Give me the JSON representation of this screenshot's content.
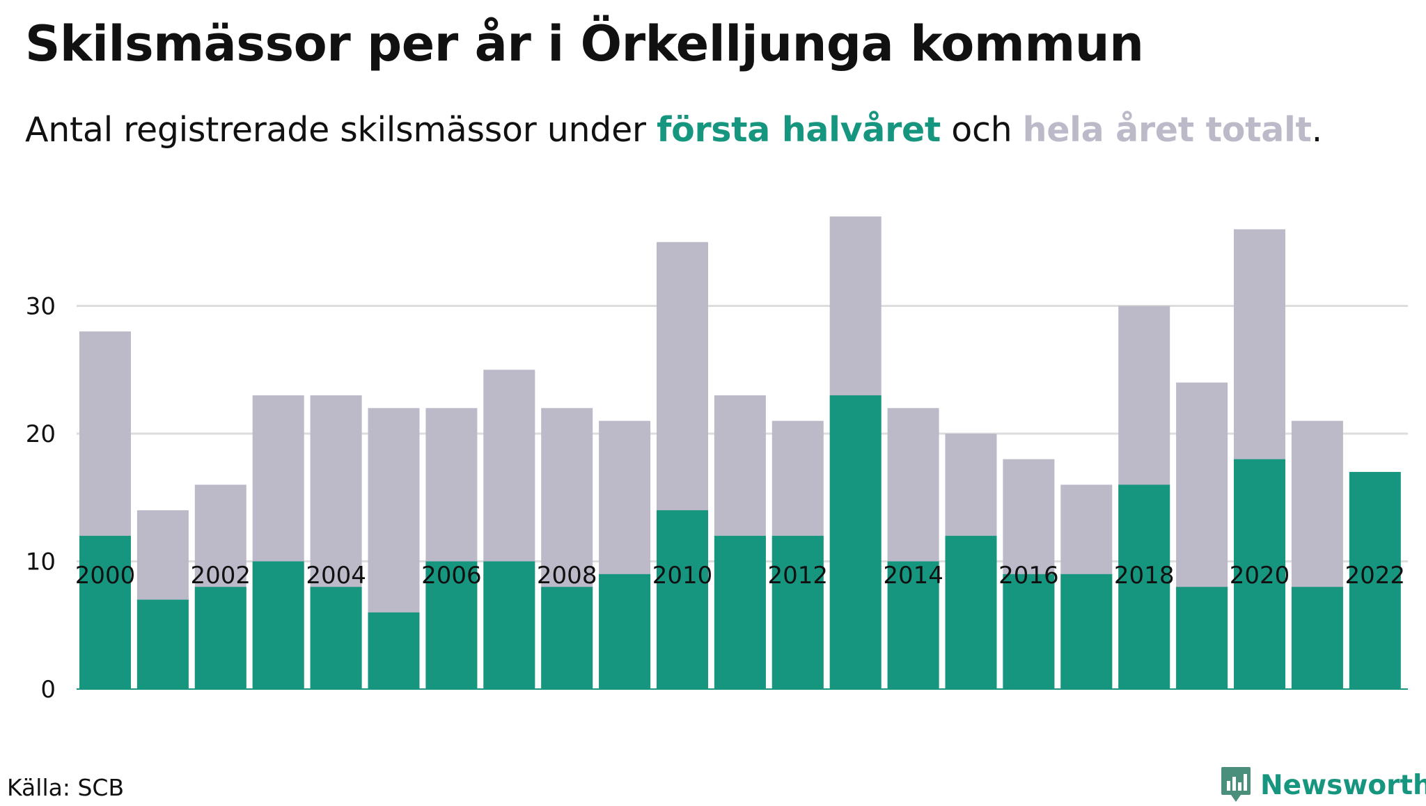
{
  "title": "Skilsmässor per år i Örkelljunga kommun",
  "subtitle": {
    "prefix": "Antal registrerade skilsmässor under ",
    "highlight_first": "första halvåret",
    "middle": " och ",
    "highlight_second": "hela året totalt",
    "suffix": "."
  },
  "source": "Källa: SCB",
  "brand": {
    "name": "Newsworthy",
    "icon": "newsworthy-logo-icon"
  },
  "colors": {
    "first_half": "#16967f",
    "full_year": "#bcbac8",
    "grid": "#dddddd",
    "text": "#111111"
  },
  "chart_data": {
    "type": "bar",
    "stacked": "overlay",
    "x": [
      2000,
      2001,
      2002,
      2003,
      2004,
      2005,
      2006,
      2007,
      2008,
      2009,
      2010,
      2011,
      2012,
      2013,
      2014,
      2015,
      2016,
      2017,
      2018,
      2019,
      2020,
      2021,
      2022
    ],
    "x_tick_labels": [
      "2000",
      "2002",
      "2004",
      "2006",
      "2008",
      "2010",
      "2012",
      "2014",
      "2016",
      "2018",
      "2020",
      "2022"
    ],
    "series": [
      {
        "name": "hela året totalt",
        "color": "#bcbac8",
        "values": [
          28,
          14,
          16,
          23,
          23,
          22,
          22,
          25,
          22,
          21,
          35,
          23,
          21,
          37,
          22,
          20,
          18,
          16,
          30,
          24,
          36,
          21,
          null
        ]
      },
      {
        "name": "första halvåret",
        "color": "#16967f",
        "values": [
          12,
          7,
          8,
          10,
          8,
          6,
          10,
          10,
          8,
          9,
          14,
          12,
          12,
          23,
          10,
          12,
          9,
          9,
          16,
          8,
          18,
          8,
          17
        ]
      }
    ],
    "y_ticks": [
      0,
      10,
      20,
      30
    ],
    "ylim": [
      0,
      37
    ],
    "grid": true,
    "legend": "in subtitle"
  }
}
